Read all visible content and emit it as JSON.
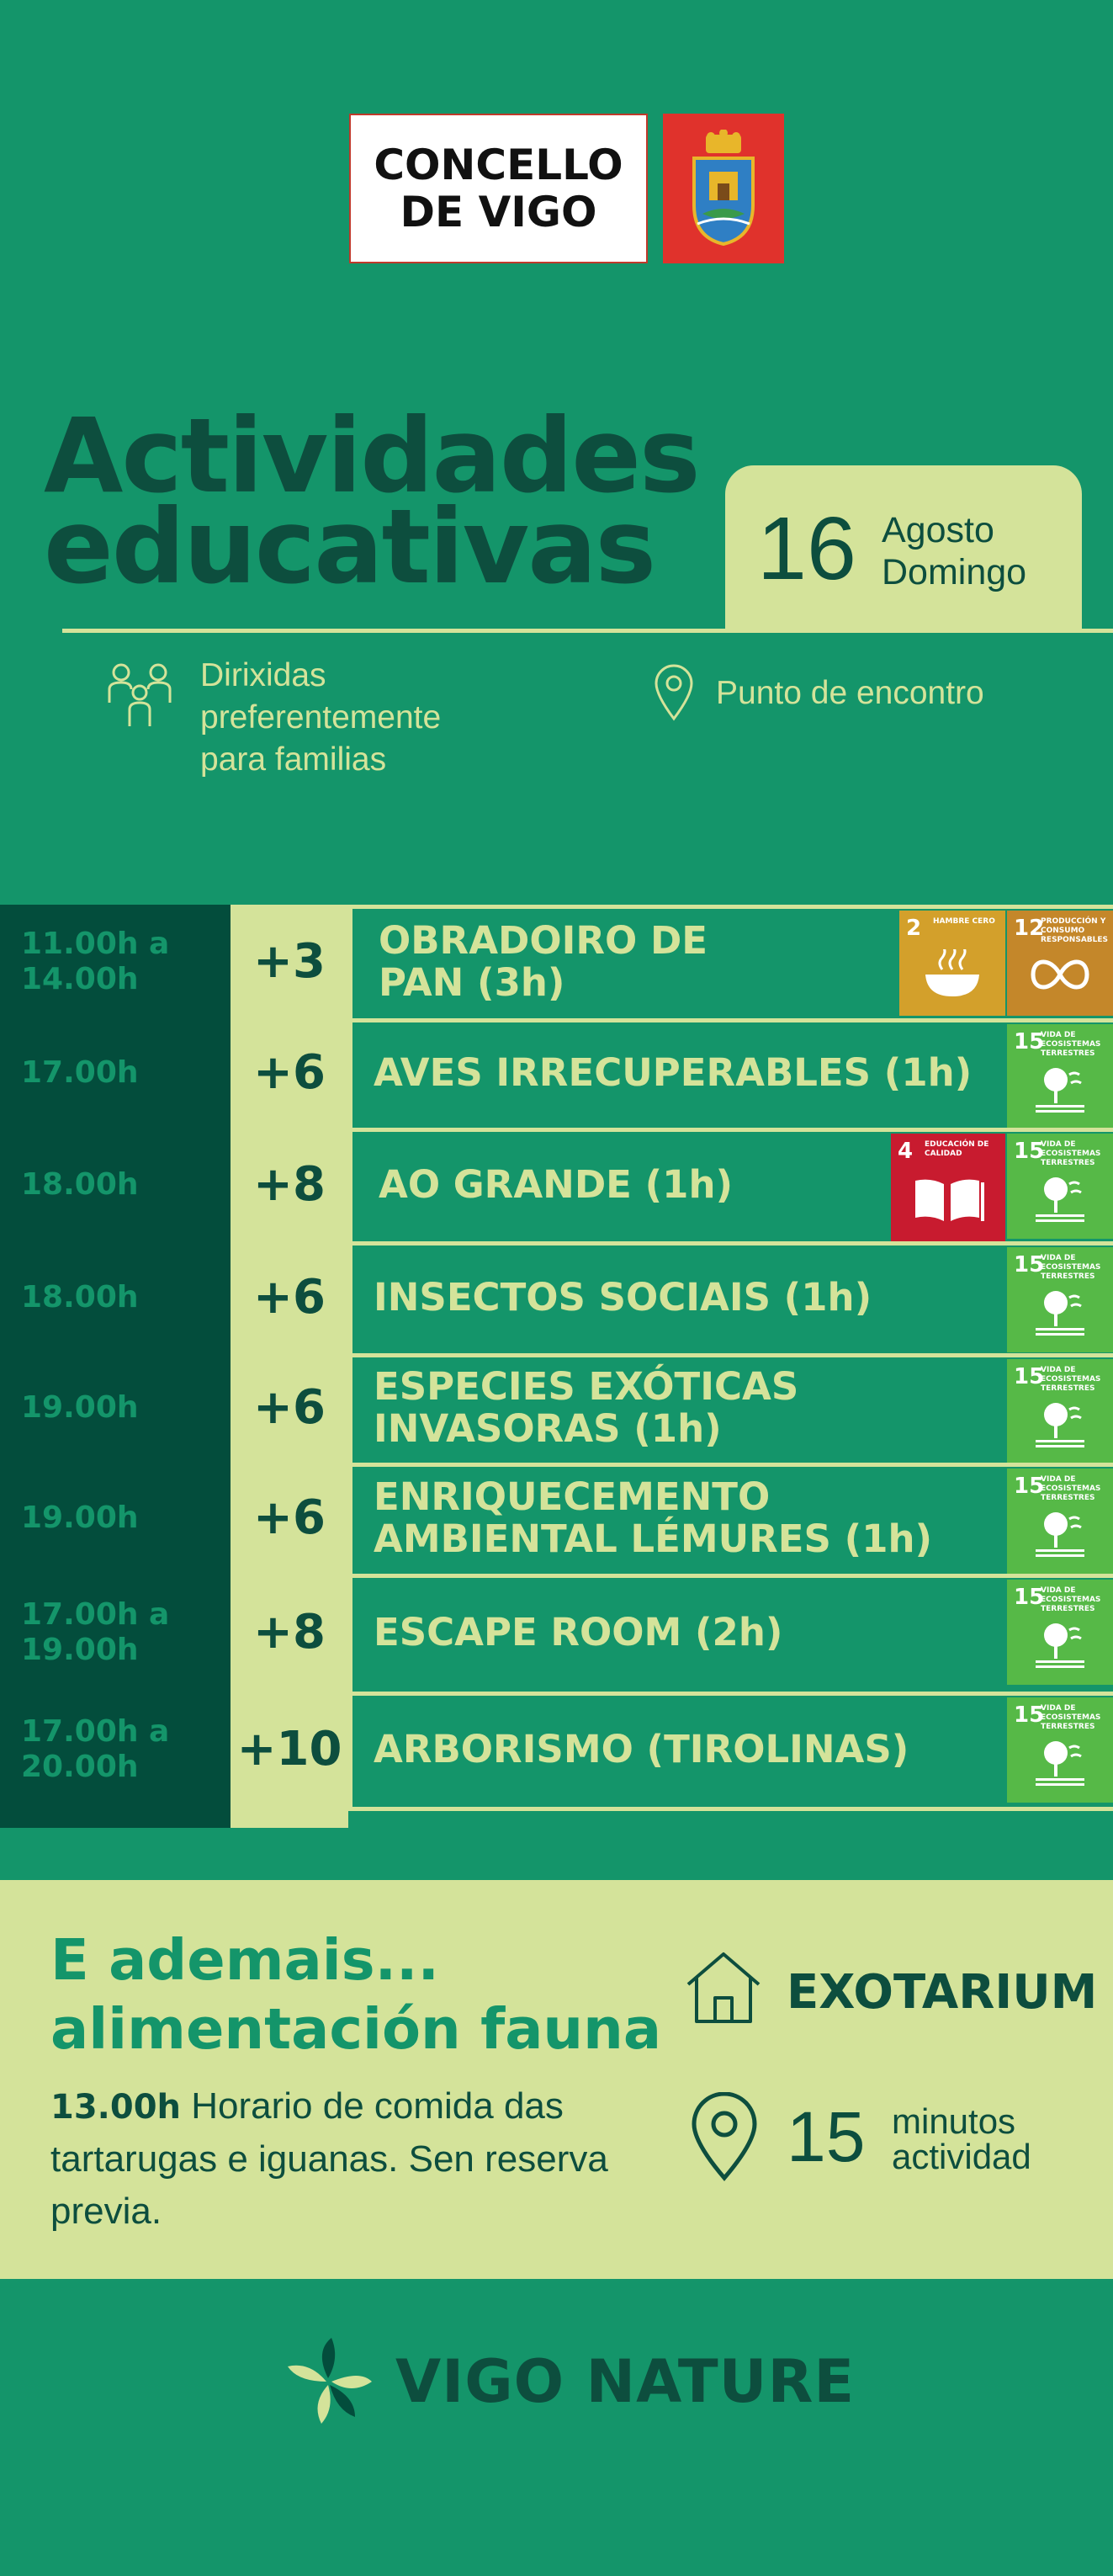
{
  "header": {
    "logo_line1": "CONCELLO",
    "logo_line2": "DE VIGO",
    "shield": "vigo-coat-of-arms-icon"
  },
  "title": {
    "line1": "Actividades",
    "line2": "educativas"
  },
  "date": {
    "day": "16",
    "month": "Agosto",
    "weekday": "Domingo"
  },
  "info": {
    "audience_line1": "Dirixidas",
    "audience_line2": "preferentemente",
    "audience_line3": "para familias",
    "meeting": "Punto de encontro"
  },
  "schedule": [
    {
      "time1": "11.00h a",
      "time2": "14.00h",
      "age": "+3",
      "name1": "OBRADOIRO DE",
      "name2": "PAN  (3h)",
      "ods": [
        "2",
        "12"
      ]
    },
    {
      "time1": "17.00h",
      "time2": "",
      "age": "+6",
      "name1": "AVES IRRECUPERABLES (1h)",
      "name2": "",
      "ods": [
        "15"
      ]
    },
    {
      "time1": "18.00h",
      "time2": "",
      "age": "+8",
      "name1": "AO GRANDE (1h)",
      "name2": "",
      "ods": [
        "4",
        "15"
      ]
    },
    {
      "time1": "18.00h",
      "time2": "",
      "age": "+6",
      "name1": "INSECTOS SOCIAIS (1h)",
      "name2": "",
      "ods": [
        "15"
      ]
    },
    {
      "time1": "19.00h",
      "time2": "",
      "age": "+6",
      "name1": "ESPECIES EXÓTICAS",
      "name2": "INVASORAS (1h)",
      "ods": [
        "15"
      ]
    },
    {
      "time1": "19.00h",
      "time2": "",
      "age": "+6",
      "name1": "ENRIQUECEMENTO",
      "name2": "AMBIENTAL LÉMURES (1h)",
      "ods": [
        "15"
      ]
    },
    {
      "time1": "17.00h a",
      "time2": "19.00h",
      "age": "+8",
      "name1": "ESCAPE ROOM (2h)",
      "name2": "",
      "ods": [
        "15"
      ]
    },
    {
      "time1": "17.00h a",
      "time2": "20.00h",
      "age": "+10",
      "name1": "ARBORISMO (TIROLINAS)",
      "name2": "",
      "ods": [
        "15"
      ]
    }
  ],
  "ods_labels": {
    "2": {
      "num": "2",
      "label": "HAMBRE CERO"
    },
    "4": {
      "num": "4",
      "label": "EDUCACIÓN DE CALIDAD"
    },
    "12": {
      "num": "12",
      "label": "PRODUCCIÓN Y CONSUMO RESPONSABLES"
    },
    "15": {
      "num": "15",
      "label": "VIDA DE ECOSISTEMAS TERRESTRES"
    }
  },
  "extra": {
    "title1": "E ademais...",
    "title2": "alimentación fauna",
    "time": "13.00h",
    "text": " Horario de comida das tartarugas e iguanas. Sen reserva previa.",
    "place": "EXOTARIUM",
    "minutes": "15",
    "minutes_word1": "minutos",
    "minutes_word2": "actividad"
  },
  "footer": {
    "brand": "VIGO NATURE"
  },
  "colors": {
    "background": "#14956a",
    "dark": "#034d3c",
    "light": "#d4e39a",
    "text_dark": "#0d4e3e"
  }
}
